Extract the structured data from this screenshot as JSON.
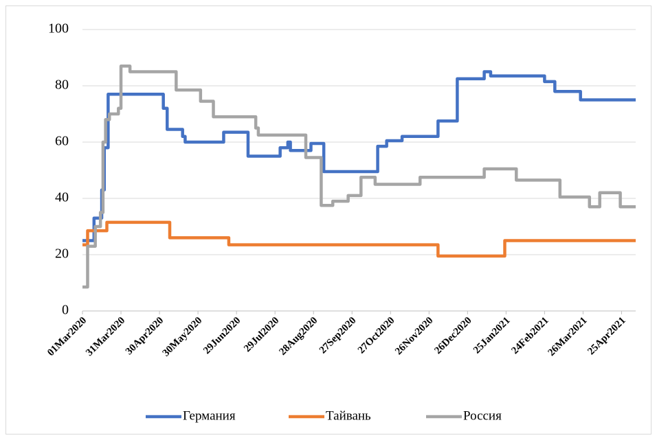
{
  "chart_data": {
    "type": "line",
    "step": "post",
    "xlim": [
      "2020-03-01",
      "2021-05-06"
    ],
    "xticks": [
      {
        "value": "2020-03-01",
        "label": "01Mar2020"
      },
      {
        "value": "2020-03-31",
        "label": "31Mar2020"
      },
      {
        "value": "2020-04-30",
        "label": "30Apr2020"
      },
      {
        "value": "2020-05-30",
        "label": "30May2020"
      },
      {
        "value": "2020-06-29",
        "label": "29Jun2020"
      },
      {
        "value": "2020-07-29",
        "label": "29Jul2020"
      },
      {
        "value": "2020-08-28",
        "label": "28Aug2020"
      },
      {
        "value": "2020-09-27",
        "label": "27Sep2020"
      },
      {
        "value": "2020-10-27",
        "label": "27Oct2020"
      },
      {
        "value": "2020-11-26",
        "label": "26Nov2020"
      },
      {
        "value": "2020-12-26",
        "label": "26Dec2020"
      },
      {
        "value": "2021-01-25",
        "label": "25Jan2021"
      },
      {
        "value": "2021-02-24",
        "label": "24Feb2021"
      },
      {
        "value": "2021-03-26",
        "label": "26Mar2021"
      },
      {
        "value": "2021-04-25",
        "label": "25Apr2021"
      }
    ],
    "ylim": [
      0,
      100
    ],
    "yticks": [
      0,
      20,
      40,
      60,
      80,
      100
    ],
    "grid": true,
    "legend": "bottom",
    "series": [
      {
        "name": "Германия",
        "color": "#4472c4",
        "x": [
          "2020-03-01",
          "2020-03-10",
          "2020-03-16",
          "2020-03-18",
          "2020-03-21",
          "2020-05-03",
          "2020-05-06",
          "2020-05-18",
          "2020-05-20",
          "2020-06-19",
          "2020-07-08",
          "2020-08-02",
          "2020-08-08",
          "2020-08-10",
          "2020-08-26",
          "2020-09-05",
          "2020-10-17",
          "2020-10-24",
          "2020-11-05",
          "2020-12-03",
          "2020-12-18",
          "2021-01-08",
          "2021-01-13",
          "2021-02-24",
          "2021-03-04",
          "2021-03-24",
          "2021-05-06"
        ],
        "values": [
          25,
          33,
          43,
          58,
          77,
          72,
          64.5,
          62,
          60,
          63.5,
          55,
          58,
          60,
          57,
          59.5,
          49.5,
          58.5,
          60.5,
          62,
          67.5,
          82.5,
          85,
          83.5,
          81.5,
          78,
          75,
          75
        ]
      },
      {
        "name": "Тайвань",
        "color": "#ed7d31",
        "x": [
          "2020-03-01",
          "2020-03-05",
          "2020-03-20",
          "2020-05-08",
          "2020-06-23",
          "2020-12-03",
          "2021-01-24",
          "2021-05-06"
        ],
        "values": [
          23.5,
          28.5,
          31.5,
          26,
          23.5,
          19.5,
          25,
          25
        ]
      },
      {
        "name": "Россия",
        "color": "#a5a5a5",
        "x": [
          "2020-03-01",
          "2020-03-05",
          "2020-03-11",
          "2020-03-15",
          "2020-03-17",
          "2020-03-19",
          "2020-03-22",
          "2020-03-29",
          "2020-03-31",
          "2020-04-07",
          "2020-05-13",
          "2020-06-01",
          "2020-06-11",
          "2020-07-14",
          "2020-07-16",
          "2020-08-22",
          "2020-09-03",
          "2020-09-12",
          "2020-09-24",
          "2020-10-04",
          "2020-10-15",
          "2020-11-19",
          "2021-01-08",
          "2021-02-02",
          "2021-03-08",
          "2021-03-31",
          "2021-04-08",
          "2021-04-24",
          "2021-05-06"
        ],
        "values": [
          8.5,
          23,
          30,
          35,
          60,
          68,
          70,
          72,
          87,
          85,
          78.5,
          74.5,
          69,
          65,
          62.5,
          54.5,
          37.5,
          39,
          41,
          47.5,
          45,
          47.5,
          50.5,
          46.5,
          40.5,
          37,
          42,
          37,
          37
        ]
      }
    ]
  }
}
